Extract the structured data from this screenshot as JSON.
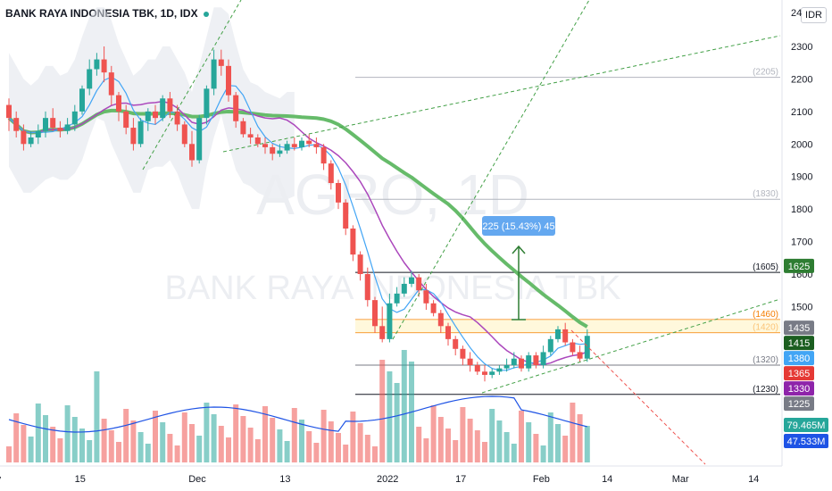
{
  "header": {
    "title": "BANK RAYA INDONESIA TBK, 1D, IDX",
    "currency": "IDR",
    "top_tick": "24"
  },
  "watermark": {
    "symbol": "AGRO, 1D",
    "name": "BANK RAYA INDONESIA TBK"
  },
  "chart_data": {
    "type": "candlestick",
    "title": "BANK RAYA INDONESIA TBK, 1D, IDX",
    "y_ticks": [
      1500,
      1600,
      1700,
      1800,
      1900,
      2000,
      2100,
      2200,
      2300
    ],
    "y_tick_labels": [
      "1500",
      "1600",
      "1700",
      "1800",
      "1900",
      "2000",
      "2100",
      "2200",
      "2300"
    ],
    "ylim": [
      1120,
      2360
    ],
    "x_ticks": [
      {
        "label": "Nov",
        "day": -3
      },
      {
        "label": "15",
        "day": 9
      },
      {
        "label": "Dec",
        "day": 25
      },
      {
        "label": "13",
        "day": 37
      },
      {
        "label": "2022",
        "day": 51
      },
      {
        "label": "17",
        "day": 61
      },
      {
        "label": "Feb",
        "day": 72
      },
      {
        "label": "14",
        "day": 81
      },
      {
        "label": "Mar",
        "day": 91
      },
      {
        "label": "14",
        "day": 101
      }
    ],
    "candles": [
      [
        2120,
        2080,
        2140,
        2040
      ],
      [
        2080,
        2040,
        2100,
        2020
      ],
      [
        2040,
        2000,
        2060,
        1980
      ],
      [
        2000,
        2020,
        2040,
        1990
      ],
      [
        2020,
        2040,
        2060,
        2000
      ],
      [
        2040,
        2080,
        2100,
        2020
      ],
      [
        2080,
        2050,
        2110,
        2040
      ],
      [
        2050,
        2040,
        2070,
        2020
      ],
      [
        2040,
        2060,
        2080,
        2030
      ],
      [
        2060,
        2100,
        2120,
        2040
      ],
      [
        2100,
        2170,
        2180,
        2090
      ],
      [
        2170,
        2230,
        2260,
        2150
      ],
      [
        2230,
        2260,
        2280,
        2210
      ],
      [
        2260,
        2220,
        2300,
        2190
      ],
      [
        2220,
        2150,
        2240,
        2120
      ],
      [
        2150,
        2100,
        2160,
        2070
      ],
      [
        2100,
        2050,
        2120,
        2030
      ],
      [
        2050,
        2000,
        2080,
        1980
      ],
      [
        2000,
        2070,
        2080,
        1990
      ],
      [
        2070,
        2100,
        2110,
        2040
      ],
      [
        2100,
        2080,
        2120,
        2060
      ],
      [
        2080,
        2140,
        2150,
        2070
      ],
      [
        2140,
        2100,
        2160,
        2080
      ],
      [
        2100,
        2060,
        2120,
        2040
      ],
      [
        2060,
        2000,
        2070,
        1990
      ],
      [
        2000,
        1950,
        2040,
        1930
      ],
      [
        1950,
        2080,
        2090,
        1940
      ],
      [
        2080,
        2170,
        2180,
        2060
      ],
      [
        2170,
        2260,
        2290,
        2150
      ],
      [
        2260,
        2240,
        2290,
        2210
      ],
      [
        2240,
        2150,
        2260,
        2130
      ],
      [
        2150,
        2070,
        2160,
        2050
      ],
      [
        2070,
        2030,
        2080,
        2020
      ],
      [
        2030,
        2020,
        2050,
        2000
      ],
      [
        2020,
        2000,
        2030,
        1990
      ],
      [
        2000,
        1990,
        2020,
        1970
      ],
      [
        1990,
        1970,
        2000,
        1950
      ],
      [
        1970,
        1980,
        2000,
        1960
      ],
      [
        1980,
        2000,
        2010,
        1970
      ],
      [
        2000,
        1990,
        2020,
        1980
      ],
      [
        1990,
        2010,
        2020,
        1980
      ],
      [
        2010,
        2000,
        2030,
        1990
      ],
      [
        2000,
        1990,
        2020,
        1970
      ],
      [
        1990,
        1940,
        2000,
        1920
      ],
      [
        1940,
        1880,
        1950,
        1860
      ],
      [
        1880,
        1820,
        1890,
        1800
      ],
      [
        1820,
        1740,
        1830,
        1720
      ],
      [
        1740,
        1660,
        1750,
        1640
      ],
      [
        1660,
        1600,
        1670,
        1580
      ],
      [
        1600,
        1520,
        1620,
        1500
      ],
      [
        1520,
        1440,
        1530,
        1420
      ],
      [
        1440,
        1400,
        1500,
        1390
      ],
      [
        1400,
        1510,
        1540,
        1390
      ],
      [
        1510,
        1540,
        1560,
        1500
      ],
      [
        1540,
        1570,
        1590,
        1530
      ],
      [
        1570,
        1590,
        1610,
        1560
      ],
      [
        1590,
        1550,
        1600,
        1530
      ],
      [
        1550,
        1510,
        1570,
        1490
      ],
      [
        1510,
        1480,
        1520,
        1470
      ],
      [
        1480,
        1440,
        1490,
        1420
      ],
      [
        1440,
        1400,
        1450,
        1380
      ],
      [
        1400,
        1370,
        1410,
        1350
      ],
      [
        1370,
        1340,
        1380,
        1320
      ],
      [
        1340,
        1320,
        1360,
        1300
      ],
      [
        1320,
        1300,
        1330,
        1290
      ],
      [
        1300,
        1290,
        1320,
        1270
      ],
      [
        1290,
        1300,
        1310,
        1280
      ],
      [
        1300,
        1310,
        1320,
        1290
      ],
      [
        1310,
        1320,
        1340,
        1300
      ],
      [
        1320,
        1340,
        1360,
        1310
      ],
      [
        1340,
        1310,
        1350,
        1300
      ],
      [
        1310,
        1350,
        1360,
        1300
      ],
      [
        1350,
        1320,
        1360,
        1310
      ],
      [
        1320,
        1360,
        1380,
        1310
      ],
      [
        1360,
        1400,
        1410,
        1350
      ],
      [
        1400,
        1430,
        1440,
        1390
      ],
      [
        1430,
        1390,
        1450,
        1380
      ],
      [
        1390,
        1360,
        1400,
        1350
      ],
      [
        1360,
        1340,
        1380,
        1330
      ],
      [
        1340,
        1410,
        1430,
        1330
      ]
    ],
    "horizontal_levels": [
      {
        "value": 2205,
        "label": "(2205)",
        "color": "#b2b5be"
      },
      {
        "value": 1830,
        "label": "(1830)",
        "color": "#b2b5be"
      },
      {
        "value": 1605,
        "label": "(1605)",
        "color": "#131722"
      },
      {
        "value": 1460,
        "label": "(1460)",
        "color": "#f57c00"
      },
      {
        "value": 1420,
        "label": "(1420)",
        "color": "#f57c00"
      },
      {
        "value": 1320,
        "label": "(1320)",
        "color": "#787b86"
      },
      {
        "value": 1230,
        "label": "(1230)",
        "color": "#131722"
      }
    ],
    "measure": {
      "from": 1460,
      "to": 1685,
      "label": "225 (15.43%) 45"
    },
    "price_tags": [
      {
        "value": 1625,
        "label": "1625",
        "bg": "#2e7d32"
      },
      {
        "value": 1435,
        "label": "1435",
        "bg": "#787b86"
      },
      {
        "value": 1415,
        "label": "1415",
        "bg": "#1b5e20"
      },
      {
        "value": 1380,
        "label": "1380",
        "bg": "#42a5f5"
      },
      {
        "value": 1365,
        "label": "1365",
        "bg": "#e53935"
      },
      {
        "value": 1330,
        "label": "1330",
        "bg": "#8e24aa"
      },
      {
        "value": 1225,
        "label": "1225",
        "bg": "#787b86"
      }
    ],
    "volume_tags": [
      {
        "label": "79.465M",
        "bg": "#26a69a"
      },
      {
        "label": "47.533M",
        "bg": "#1e53e5"
      }
    ],
    "colors": {
      "up": "#26a69a",
      "down": "#ef5350",
      "ma_long": "#66bb6a",
      "ma_mid": "#ab47bc",
      "ma_fast": "#42a5f5",
      "vol_ma": "#1e53e5"
    }
  }
}
